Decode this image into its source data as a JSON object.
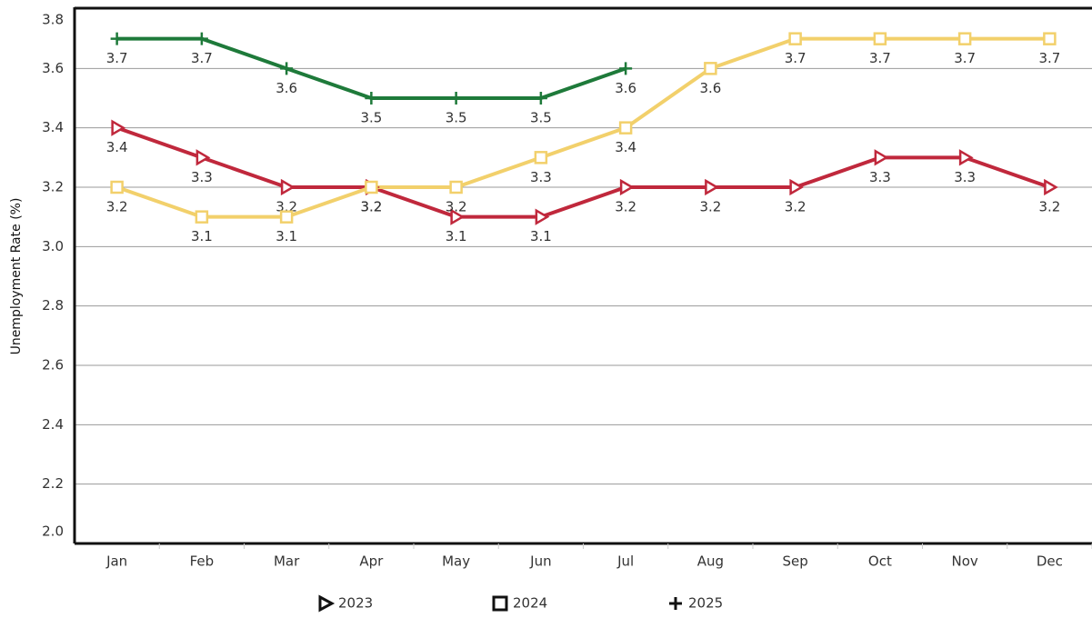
{
  "chart_data": {
    "type": "line",
    "y_label": "Unemployment Rate (%)",
    "categories": [
      "Jan",
      "Feb",
      "Mar",
      "Apr",
      "May",
      "Jun",
      "Jul",
      "Aug",
      "Sep",
      "Oct",
      "Nov",
      "Dec"
    ],
    "series": [
      {
        "name": "2023",
        "color": "#c0283c",
        "marker": "triangle-right",
        "values": [
          3.4,
          3.3,
          3.2,
          3.2,
          3.1,
          3.1,
          3.2,
          3.2,
          3.2,
          3.3,
          3.3,
          3.2
        ]
      },
      {
        "name": "2024",
        "color": "#f2d06b",
        "marker": "square",
        "values": [
          3.2,
          3.1,
          3.1,
          3.2,
          3.2,
          3.3,
          3.4,
          3.6,
          3.7,
          3.7,
          3.7,
          3.7
        ]
      },
      {
        "name": "2025",
        "color": "#1e7a3a",
        "marker": "plus",
        "values": [
          3.7,
          3.7,
          3.6,
          3.5,
          3.5,
          3.5,
          3.6,
          null,
          null,
          null,
          null,
          null
        ]
      }
    ],
    "ylim": [
      2.0,
      3.8
    ],
    "yticks": [
      {
        "value": 2,
        "label": "2.0"
      },
      2.2,
      2.4,
      2.6,
      2.8,
      {
        "value": 3,
        "label": "3.0"
      },
      3.2,
      3.4,
      3.6,
      3.8
    ],
    "grid": true,
    "legend": "bottom"
  }
}
